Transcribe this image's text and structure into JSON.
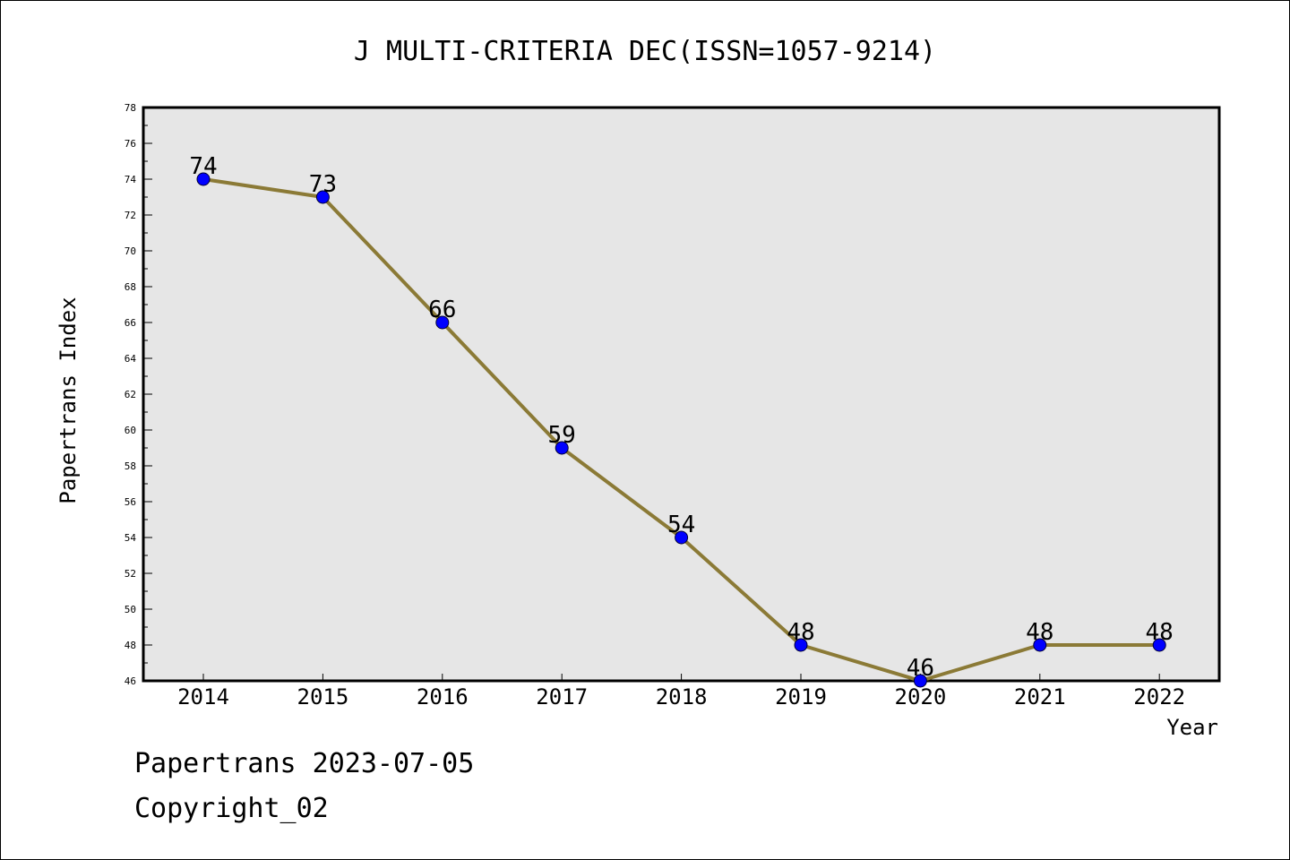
{
  "chart_data": {
    "type": "line",
    "title": "J MULTI-CRITERIA DEC(ISSN=1057-9214)",
    "xlabel": "Year",
    "ylabel": "Papertrans Index",
    "categories": [
      "2014",
      "2015",
      "2016",
      "2017",
      "2018",
      "2019",
      "2020",
      "2021",
      "2022"
    ],
    "series": [
      {
        "values": [
          74,
          73,
          66,
          59,
          54,
          48,
          46,
          48,
          48
        ]
      }
    ],
    "ylim": [
      46,
      78
    ],
    "yticks": [
      46,
      48,
      50,
      52,
      54,
      56,
      58,
      60,
      62,
      64,
      66,
      68,
      70,
      72,
      74,
      76,
      78
    ],
    "data_labels": true,
    "grid": false,
    "colors": {
      "line": "#8b7a36",
      "marker": "#0000ff",
      "plot_bg": "#e6e6e6"
    }
  },
  "footer": {
    "line1": "Papertrans 2023-07-05",
    "line2": "Copyright_02"
  }
}
